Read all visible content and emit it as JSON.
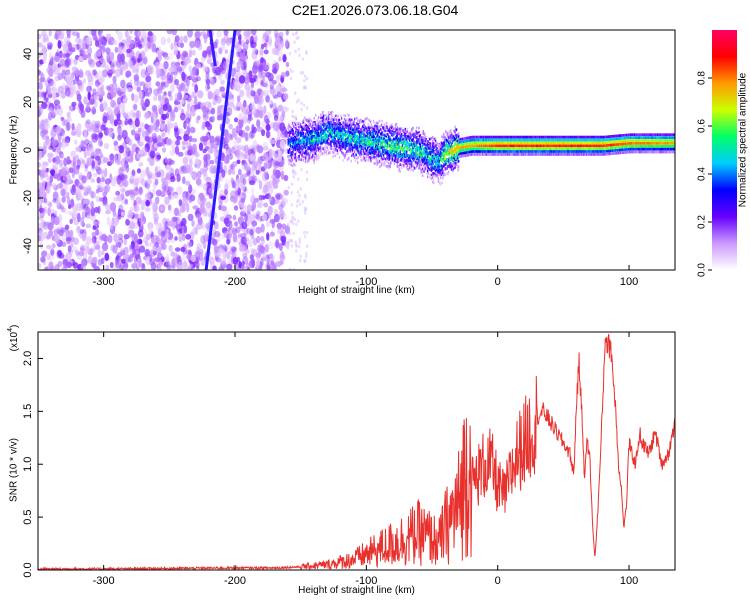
{
  "title": "C2E1.2026.073.06.18.G04",
  "chart_data": [
    {
      "type": "heatmap",
      "xlabel": "Height of straight line (km)",
      "ylabel": "Frequency (Hz)",
      "xlim": [
        -350,
        135
      ],
      "ylim": [
        -50,
        50
      ],
      "x_ticks": [
        -300,
        -200,
        -100,
        0,
        100
      ],
      "y_ticks": [
        -40,
        -20,
        0,
        20,
        40
      ],
      "colorbar": {
        "label": "Normalized spectral amplitude",
        "range": [
          0.0,
          1.0
        ],
        "ticks": [
          0.0,
          0.2,
          0.4,
          0.6,
          0.8
        ],
        "colors": [
          "#ffffff",
          "#cc99ff",
          "#6600ff",
          "#0000ff",
          "#00ccff",
          "#00ff66",
          "#ccff00",
          "#ff9900",
          "#ff0000",
          "#ff0066"
        ]
      },
      "noise_region": {
        "x": [
          -350,
          -160
        ],
        "y": [
          -50,
          50
        ],
        "amplitude": 0.15
      },
      "diagonal_streak": {
        "x": [
          -222,
          -200
        ],
        "y": [
          -50,
          50
        ],
        "amplitude": 0.2
      },
      "signal_track": {
        "x": [
          -160,
          -150,
          -140,
          -130,
          -120,
          -110,
          -100,
          -90,
          -80,
          -70,
          -60,
          -50,
          -45,
          -40,
          -30,
          -20,
          -10,
          0,
          20,
          40,
          60,
          80,
          100,
          135
        ],
        "y": [
          3,
          4,
          5,
          8,
          6,
          5,
          4,
          3,
          2,
          1,
          0,
          -3,
          -5,
          -1,
          1,
          2,
          2,
          2,
          2,
          2,
          2,
          2,
          3,
          3
        ],
        "amplitude": [
          0.4,
          0.45,
          0.5,
          0.5,
          0.5,
          0.5,
          0.55,
          0.55,
          0.6,
          0.6,
          0.55,
          0.5,
          0.5,
          0.7,
          0.8,
          0.8,
          0.85,
          0.9,
          0.9,
          0.9,
          0.9,
          0.9,
          0.85,
          0.8
        ]
      }
    },
    {
      "type": "line",
      "xlabel": "Height of straight line (km)",
      "ylabel": "SNR (10 * v/v)",
      "yscale_label": "(x10",
      "yscale_exp": "4",
      "yscale_close": ")",
      "xlim": [
        -350,
        135
      ],
      "ylim": [
        0,
        2.25
      ],
      "x_ticks": [
        -300,
        -200,
        -100,
        0,
        100
      ],
      "y_ticks": [
        0.0,
        0.5,
        1.0,
        1.5,
        2.0
      ],
      "color": "#e8302c",
      "series": [
        {
          "x": [
            -350,
            -300,
            -250,
            -200,
            -170,
            -150,
            -130,
            -110,
            -100,
            -90,
            -80,
            -70,
            -60,
            -50,
            -45,
            -40,
            -35,
            -30,
            -25,
            -22,
            -20,
            -15,
            -10,
            -5,
            0,
            5,
            10,
            15,
            20,
            25,
            30,
            35,
            40,
            45,
            50,
            55,
            58,
            60,
            62,
            64,
            66,
            68,
            70,
            72,
            74,
            76,
            78,
            80,
            82,
            84,
            86,
            88,
            90,
            92,
            94,
            96,
            98,
            100,
            102,
            105,
            108,
            110,
            115,
            120,
            125,
            130,
            135
          ],
          "y": [
            0.01,
            0.01,
            0.015,
            0.02,
            0.02,
            0.03,
            0.05,
            0.1,
            0.15,
            0.2,
            0.25,
            0.3,
            0.35,
            0.3,
            0.25,
            0.4,
            0.5,
            0.6,
            0.9,
            1.1,
            0.8,
            0.9,
            1.0,
            1.0,
            0.8,
            0.7,
            0.9,
            1.1,
            1.2,
            1.3,
            1.45,
            1.5,
            1.4,
            1.3,
            1.2,
            1.1,
            0.9,
            1.6,
            1.95,
            1.5,
            0.9,
            1.2,
            1.1,
            0.5,
            0.1,
            0.5,
            1.0,
            1.6,
            2.25,
            2.1,
            2.15,
            1.8,
            1.5,
            1.0,
            0.8,
            0.4,
            0.6,
            1.2,
            1.1,
            1.0,
            1.3,
            1.2,
            1.1,
            1.3,
            1.0,
            1.1,
            1.4
          ]
        }
      ]
    }
  ]
}
